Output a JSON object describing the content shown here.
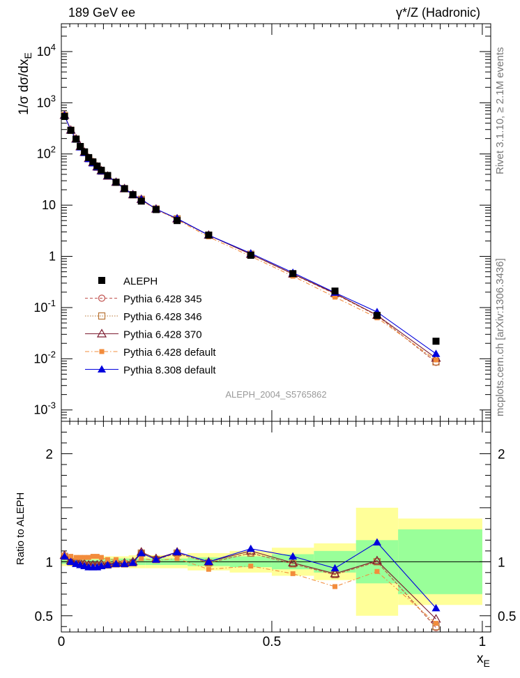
{
  "header": {
    "left": "189 GeV ee",
    "right": "γ*/Z (Hadronic)"
  },
  "side_text": {
    "rivet": "Rivet 3.1.10, ≥ 2.1M events",
    "source": "mcplots.cern.ch [arXiv:1306.3436]"
  },
  "watermark": "ALEPH_2004_S5765862",
  "colors": {
    "data": "#000000",
    "p345": "#c0504d",
    "p346": "#b87333",
    "p370": "#7b1a2e",
    "pdef": "#f28c3c",
    "p8": "#0000dd",
    "band_yellow": "#ffff99",
    "band_green": "#99ff99"
  },
  "chart_data": [
    {
      "type": "scatter",
      "panel": "main",
      "ylabel": "1/σ dσ/dx_E",
      "xlabel": "x_E",
      "xlim": [
        0,
        1.02
      ],
      "ylim": [
        0.0006,
        35000
      ],
      "yscale": "log",
      "yticks": [
        "10^-3",
        "10^-2",
        "10^-1",
        "1",
        "10",
        "10^2",
        "10^3",
        "10^4"
      ],
      "xticks": [
        "0",
        "0.5",
        "1"
      ],
      "legend_position": "bottom-left",
      "legend": [
        {
          "label": "ALEPH",
          "marker": "square-filled",
          "key": "data"
        },
        {
          "label": "Pythia 6.428 345",
          "marker": "circle-open",
          "key": "p345"
        },
        {
          "label": "Pythia 6.428 346",
          "marker": "square-open",
          "key": "p346"
        },
        {
          "label": "Pythia 6.428 370",
          "marker": "triangle-open",
          "key": "p370"
        },
        {
          "label": "Pythia 6.428 default",
          "marker": "square-filled-small",
          "key": "pdef"
        },
        {
          "label": "Pythia 8.308 default",
          "marker": "triangle-filled",
          "key": "p8"
        }
      ],
      "x": [
        0.0075,
        0.0225,
        0.035,
        0.045,
        0.055,
        0.065,
        0.075,
        0.085,
        0.095,
        0.11,
        0.13,
        0.15,
        0.17,
        0.19,
        0.225,
        0.275,
        0.35,
        0.45,
        0.55,
        0.65,
        0.75,
        0.89
      ],
      "data_values": [
        540,
        290,
        195,
        140,
        110,
        85,
        70,
        58,
        48,
        38,
        28,
        21,
        16,
        12,
        8.2,
        5.0,
        2.6,
        1.05,
        0.46,
        0.21,
        0.07,
        0.022
      ],
      "series": [
        {
          "name": "Pythia 6.428 345",
          "key": "p345",
          "values": [
            565,
            290,
            195,
            138,
            107,
            81,
            67,
            55,
            46,
            37,
            28,
            21,
            16,
            13,
            8.4,
            5.4,
            2.6,
            1.1,
            0.45,
            0.185,
            0.07,
            0.0085
          ]
        },
        {
          "name": "Pythia 6.428 346",
          "key": "p346",
          "values": [
            565,
            290,
            195,
            138,
            107,
            81,
            67,
            55,
            46,
            37,
            28,
            21,
            16,
            13,
            8.4,
            5.4,
            2.6,
            1.1,
            0.45,
            0.185,
            0.07,
            0.0087
          ]
        },
        {
          "name": "Pythia 6.428 370",
          "key": "p370",
          "values": [
            570,
            292,
            196,
            139,
            108,
            82,
            68,
            56,
            47,
            37,
            28,
            21,
            16,
            13,
            8.4,
            5.4,
            2.6,
            1.1,
            0.455,
            0.19,
            0.071,
            0.0103
          ]
        },
        {
          "name": "Pythia 6.428 default",
          "key": "pdef",
          "values": [
            575,
            305,
            203,
            145,
            114,
            88,
            74,
            61,
            50,
            39,
            29,
            21,
            16,
            12.4,
            8.3,
            5.2,
            2.4,
            1.0,
            0.41,
            0.16,
            0.063,
            0.0095
          ]
        },
        {
          "name": "Pythia 8.308 default",
          "key": "p8",
          "values": [
            565,
            290,
            192,
            135,
            105,
            80,
            66,
            55,
            46,
            37,
            28,
            21,
            16,
            13,
            8.4,
            5.5,
            2.6,
            1.15,
            0.48,
            0.196,
            0.082,
            0.0125
          ]
        }
      ]
    },
    {
      "type": "line",
      "panel": "ratio",
      "ylabel": "Ratio to ALEPH",
      "xlabel": "x_E",
      "xlim": [
        0,
        1.02
      ],
      "ylim": [
        0.35,
        2.3
      ],
      "yticks": [
        "0.5",
        "1",
        "2"
      ],
      "xticks": [
        "0",
        "0.5",
        "1"
      ],
      "bins": [
        [
          0.0,
          0.015
        ],
        [
          0.015,
          0.03
        ],
        [
          0.03,
          0.04
        ],
        [
          0.04,
          0.05
        ],
        [
          0.05,
          0.06
        ],
        [
          0.06,
          0.07
        ],
        [
          0.07,
          0.08
        ],
        [
          0.08,
          0.09
        ],
        [
          0.09,
          0.1
        ],
        [
          0.1,
          0.12
        ],
        [
          0.12,
          0.14
        ],
        [
          0.14,
          0.16
        ],
        [
          0.16,
          0.18
        ],
        [
          0.18,
          0.2
        ],
        [
          0.2,
          0.25
        ],
        [
          0.25,
          0.3
        ],
        [
          0.3,
          0.4
        ],
        [
          0.4,
          0.5
        ],
        [
          0.5,
          0.6
        ],
        [
          0.6,
          0.7
        ],
        [
          0.7,
          0.8
        ],
        [
          0.8,
          1.0
        ]
      ],
      "band_green": [
        0.02,
        0.02,
        0.02,
        0.02,
        0.02,
        0.02,
        0.02,
        0.02,
        0.02,
        0.03,
        0.03,
        0.03,
        0.03,
        0.03,
        0.03,
        0.03,
        0.04,
        0.05,
        0.07,
        0.1,
        0.2,
        0.3
      ],
      "band_yellow": [
        0.04,
        0.04,
        0.04,
        0.04,
        0.04,
        0.04,
        0.04,
        0.04,
        0.04,
        0.05,
        0.05,
        0.05,
        0.06,
        0.06,
        0.06,
        0.06,
        0.08,
        0.1,
        0.13,
        0.17,
        0.5,
        0.4
      ],
      "x": [
        0.0075,
        0.0225,
        0.035,
        0.045,
        0.055,
        0.065,
        0.075,
        0.085,
        0.095,
        0.11,
        0.13,
        0.15,
        0.17,
        0.19,
        0.225,
        0.275,
        0.35,
        0.45,
        0.55,
        0.65,
        0.75,
        0.89
      ],
      "series": [
        {
          "name": "Pythia 6.428 345",
          "key": "p345",
          "values": [
            1.05,
            1.0,
            0.99,
            0.98,
            0.97,
            0.96,
            0.96,
            0.96,
            0.97,
            0.97,
            0.98,
            0.98,
            0.99,
            1.08,
            1.02,
            1.08,
            0.99,
            1.08,
            0.98,
            0.88,
            1.0,
            0.39
          ]
        },
        {
          "name": "Pythia 6.428 346",
          "key": "p346",
          "values": [
            1.05,
            1.0,
            0.99,
            0.98,
            0.97,
            0.96,
            0.96,
            0.96,
            0.97,
            0.97,
            0.98,
            0.98,
            0.99,
            1.08,
            1.02,
            1.08,
            0.99,
            1.08,
            0.98,
            0.88,
            1.0,
            0.4
          ]
        },
        {
          "name": "Pythia 6.428 370",
          "key": "p370",
          "values": [
            1.06,
            1.01,
            1.0,
            0.99,
            0.98,
            0.97,
            0.97,
            0.97,
            0.98,
            0.98,
            0.99,
            0.99,
            1.0,
            1.09,
            1.03,
            1.09,
            1.0,
            1.1,
            0.99,
            0.89,
            1.01,
            0.47
          ]
        },
        {
          "name": "Pythia 6.428 default",
          "key": "pdef",
          "values": [
            1.06,
            1.05,
            1.04,
            1.04,
            1.04,
            1.04,
            1.05,
            1.05,
            1.04,
            1.02,
            1.02,
            0.99,
            0.98,
            1.03,
            1.01,
            1.03,
            0.93,
            0.96,
            0.89,
            0.77,
            0.91,
            0.43
          ]
        },
        {
          "name": "Pythia 8.308 default",
          "key": "p8",
          "values": [
            1.05,
            1.0,
            0.98,
            0.97,
            0.96,
            0.95,
            0.95,
            0.95,
            0.96,
            0.97,
            0.98,
            0.98,
            0.99,
            1.08,
            1.02,
            1.09,
            1.0,
            1.12,
            1.05,
            0.94,
            1.18,
            0.57
          ]
        }
      ]
    }
  ]
}
